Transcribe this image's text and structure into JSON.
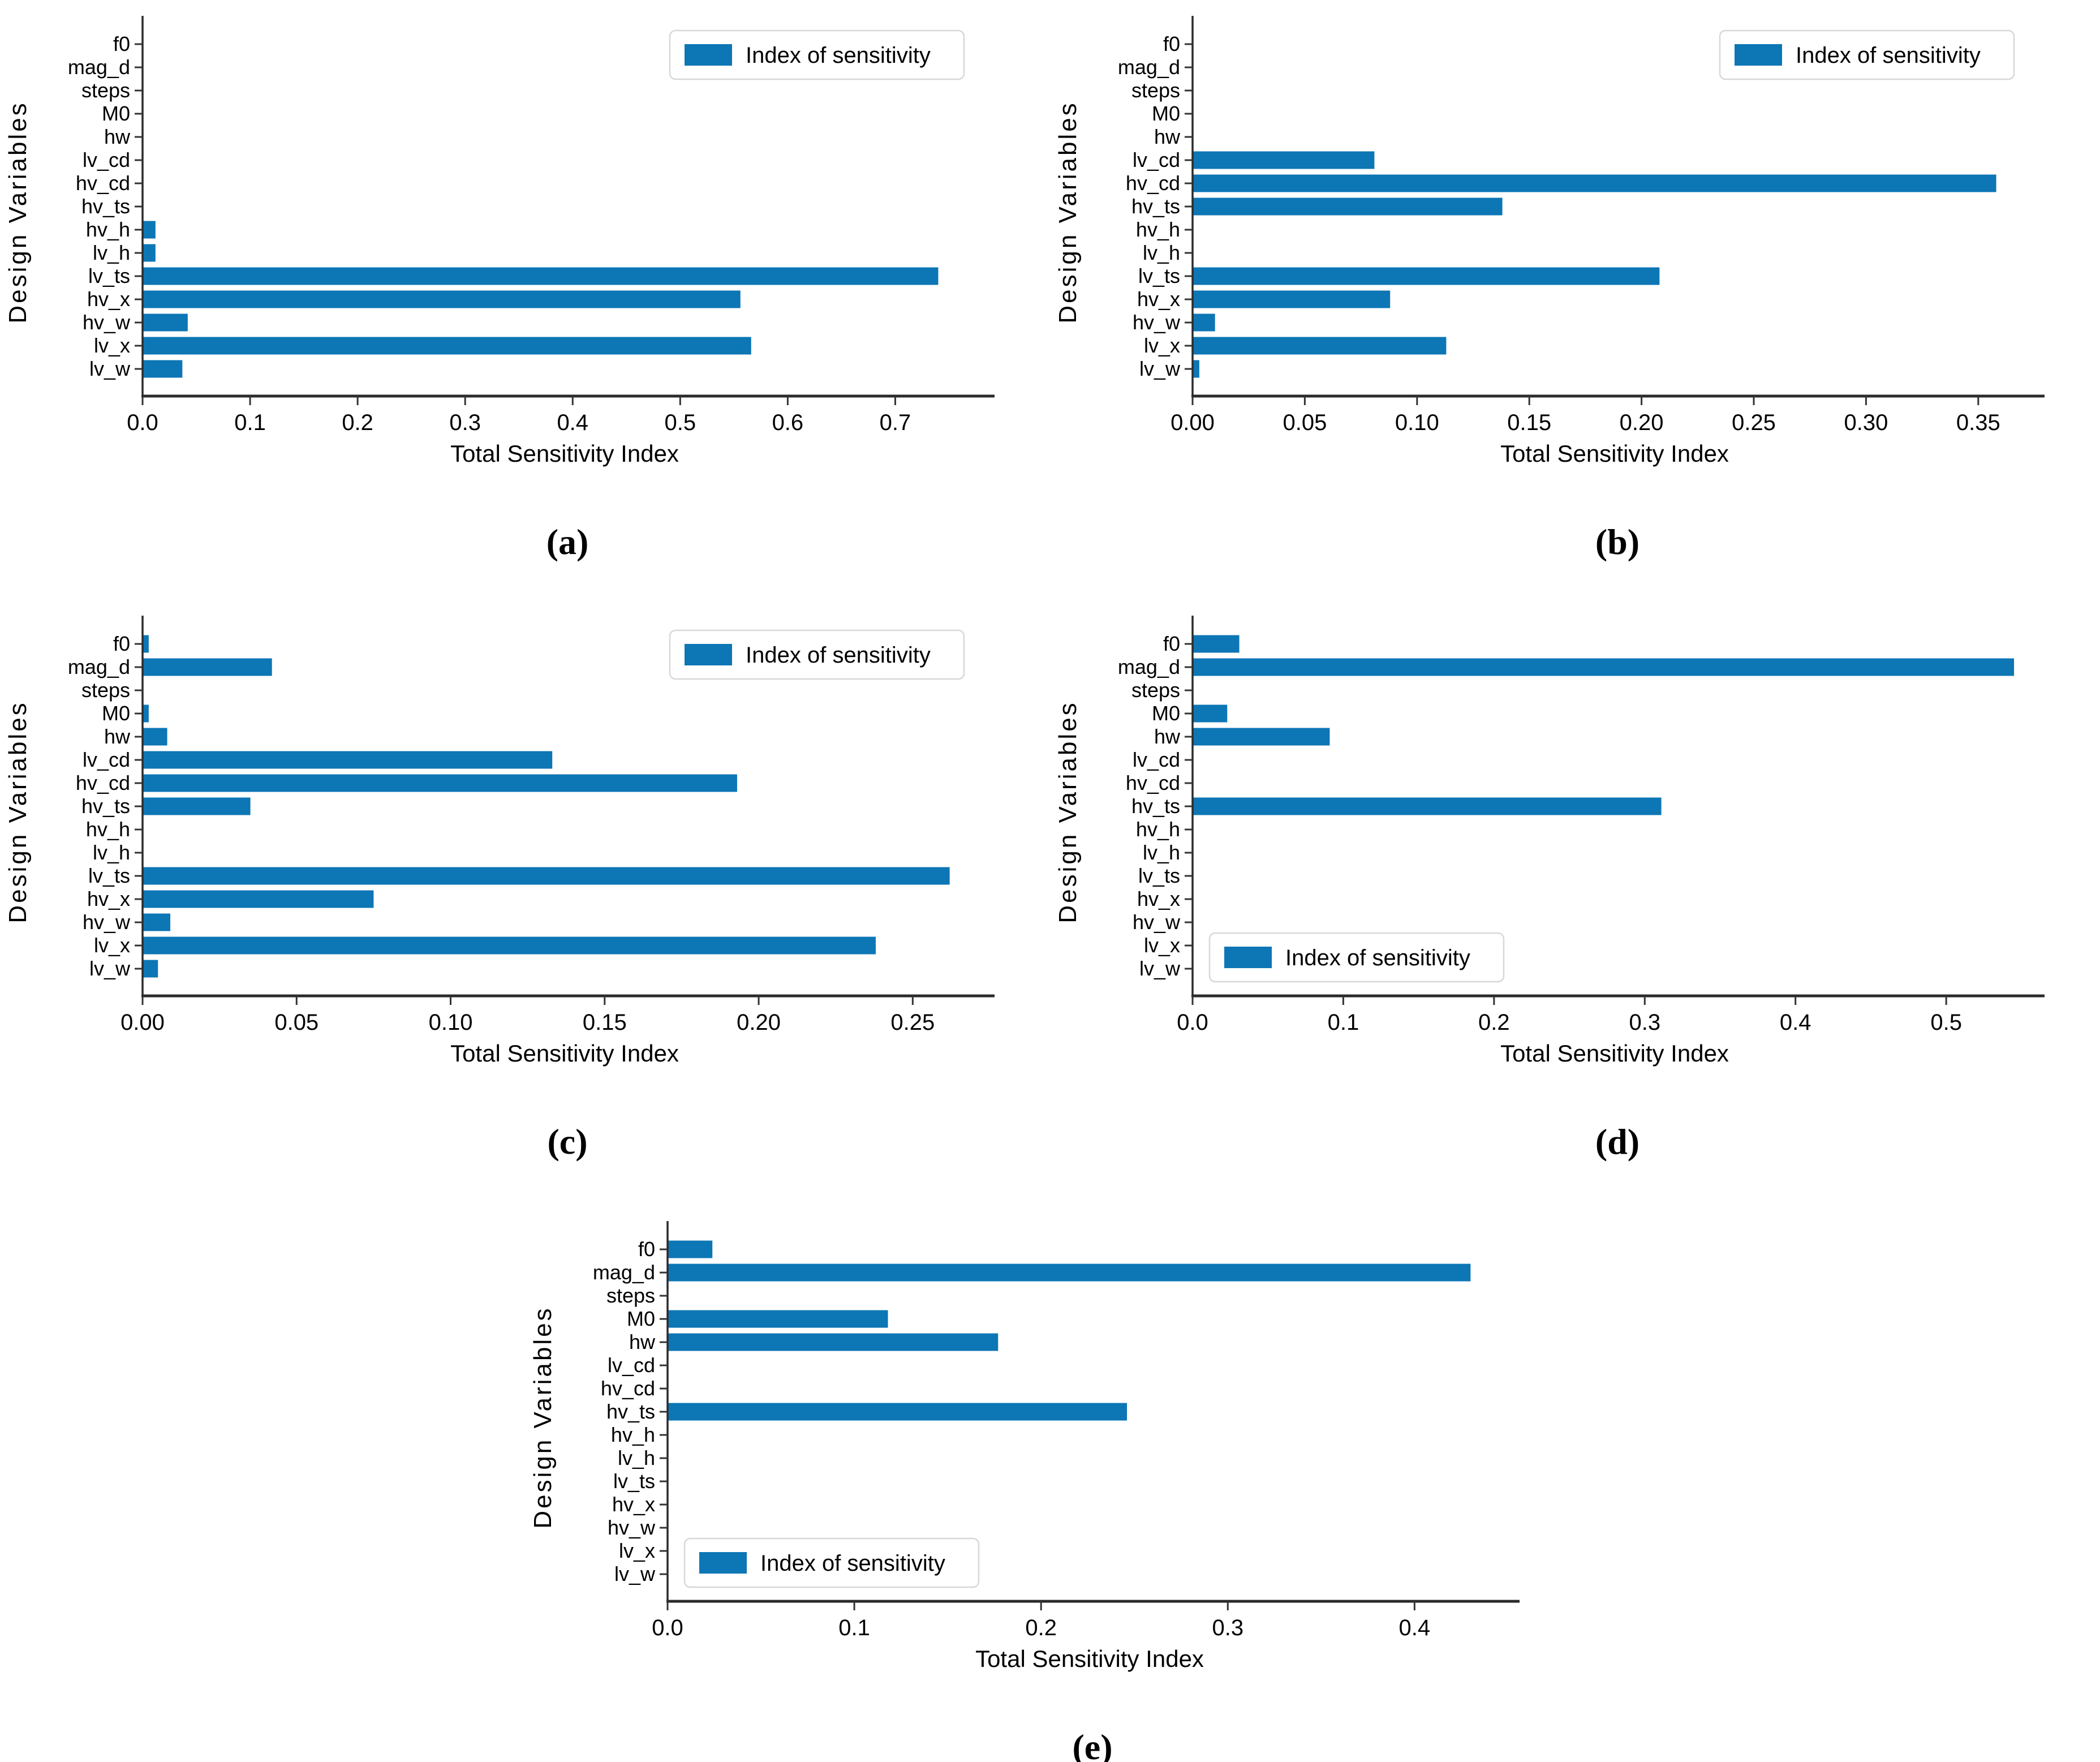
{
  "colors": {
    "bar": "#0d76b5",
    "spine": "#2b2b2b",
    "tick": "#333333",
    "text": "#000000",
    "legend_border": "#d8d8d8",
    "legend_bg": "#ffffff",
    "background": "#ffffff"
  },
  "chart_data": [
    {
      "id": "a",
      "caption": "(a)",
      "type": "bar",
      "orientation": "horizontal",
      "title": "",
      "xlabel": "Total Sensitivity Index",
      "ylabel": "Design Variables",
      "legend": {
        "label": "Index of sensitivity",
        "position": "top-right"
      },
      "categories": [
        "f0",
        "mag_d",
        "steps",
        "M0",
        "hw",
        "lv_cd",
        "hv_cd",
        "hv_ts",
        "hv_h",
        "lv_h",
        "lv_ts",
        "hv_x",
        "hv_w",
        "lv_x",
        "lv_w"
      ],
      "values": [
        0,
        0,
        0,
        0,
        0,
        0,
        0,
        0,
        0.012,
        0.012,
        0.74,
        0.556,
        0.042,
        0.566,
        0.037
      ],
      "xlim": [
        0,
        0.785
      ],
      "xticks": [
        0.0,
        0.1,
        0.2,
        0.3,
        0.4,
        0.5,
        0.6,
        0.7
      ],
      "xtick_labels": [
        "0.0",
        "0.1",
        "0.2",
        "0.3",
        "0.4",
        "0.5",
        "0.6",
        "0.7"
      ],
      "grid": false
    },
    {
      "id": "b",
      "caption": "(b)",
      "type": "bar",
      "orientation": "horizontal",
      "title": "",
      "xlabel": "Total Sensitivity Index",
      "ylabel": "Design Variables",
      "legend": {
        "label": "Index of sensitivity",
        "position": "top-right"
      },
      "categories": [
        "f0",
        "mag_d",
        "steps",
        "M0",
        "hw",
        "lv_cd",
        "hv_cd",
        "hv_ts",
        "hv_h",
        "lv_h",
        "lv_ts",
        "hv_x",
        "hv_w",
        "lv_x",
        "lv_w"
      ],
      "values": [
        0,
        0,
        0,
        0,
        0,
        0.081,
        0.358,
        0.138,
        0,
        0,
        0.208,
        0.088,
        0.01,
        0.113,
        0.003
      ],
      "xlim": [
        0,
        0.376
      ],
      "xticks": [
        0.0,
        0.05,
        0.1,
        0.15,
        0.2,
        0.25,
        0.3,
        0.35
      ],
      "xtick_labels": [
        "0.00",
        "0.05",
        "0.10",
        "0.15",
        "0.20",
        "0.25",
        "0.30",
        "0.35"
      ],
      "grid": false
    },
    {
      "id": "c",
      "caption": "(c)",
      "type": "bar",
      "orientation": "horizontal",
      "title": "",
      "xlabel": "Total Sensitivity Index",
      "ylabel": "Design Variables",
      "legend": {
        "label": "Index of sensitivity",
        "position": "top-right"
      },
      "categories": [
        "f0",
        "mag_d",
        "steps",
        "M0",
        "hw",
        "lv_cd",
        "hv_cd",
        "hv_ts",
        "hv_h",
        "lv_h",
        "lv_ts",
        "hv_x",
        "hv_w",
        "lv_x",
        "lv_w"
      ],
      "values": [
        0.002,
        0.042,
        0,
        0.002,
        0.008,
        0.133,
        0.193,
        0.035,
        0,
        0,
        0.262,
        0.075,
        0.009,
        0.238,
        0.005
      ],
      "xlim": [
        0,
        0.274
      ],
      "xticks": [
        0.0,
        0.05,
        0.1,
        0.15,
        0.2,
        0.25
      ],
      "xtick_labels": [
        "0.00",
        "0.05",
        "0.10",
        "0.15",
        "0.20",
        "0.25"
      ],
      "grid": false
    },
    {
      "id": "d",
      "caption": "(d)",
      "type": "bar",
      "orientation": "horizontal",
      "title": "",
      "xlabel": "Total Sensitivity Index",
      "ylabel": "Design Variables",
      "legend": {
        "label": "Index of sensitivity",
        "position": "bottom-left"
      },
      "categories": [
        "f0",
        "mag_d",
        "steps",
        "M0",
        "hw",
        "lv_cd",
        "hv_cd",
        "hv_ts",
        "hv_h",
        "lv_h",
        "lv_ts",
        "hv_x",
        "hv_w",
        "lv_x",
        "lv_w"
      ],
      "values": [
        0.031,
        0.545,
        0,
        0.023,
        0.091,
        0,
        0,
        0.311,
        0,
        0,
        0,
        0,
        0,
        0,
        0
      ],
      "xlim": [
        0,
        0.56
      ],
      "xticks": [
        0.0,
        0.1,
        0.2,
        0.3,
        0.4,
        0.5
      ],
      "xtick_labels": [
        "0.0",
        "0.1",
        "0.2",
        "0.3",
        "0.4",
        "0.5"
      ],
      "grid": false
    },
    {
      "id": "e",
      "caption": "(e)",
      "type": "bar",
      "orientation": "horizontal",
      "title": "",
      "xlabel": "Total Sensitivity Index",
      "ylabel": "Design Variables",
      "legend": {
        "label": "Index of sensitivity",
        "position": "bottom-left"
      },
      "categories": [
        "f0",
        "mag_d",
        "steps",
        "M0",
        "hw",
        "lv_cd",
        "hv_cd",
        "hv_ts",
        "hv_h",
        "lv_h",
        "lv_ts",
        "hv_x",
        "hv_w",
        "lv_x",
        "lv_w"
      ],
      "values": [
        0.024,
        0.43,
        0,
        0.118,
        0.177,
        0,
        0,
        0.246,
        0,
        0,
        0,
        0,
        0,
        0,
        0
      ],
      "xlim": [
        0,
        0.452
      ],
      "xticks": [
        0.0,
        0.1,
        0.2,
        0.3,
        0.4
      ],
      "xtick_labels": [
        "0.0",
        "0.1",
        "0.2",
        "0.3",
        "0.4"
      ],
      "grid": false
    }
  ]
}
